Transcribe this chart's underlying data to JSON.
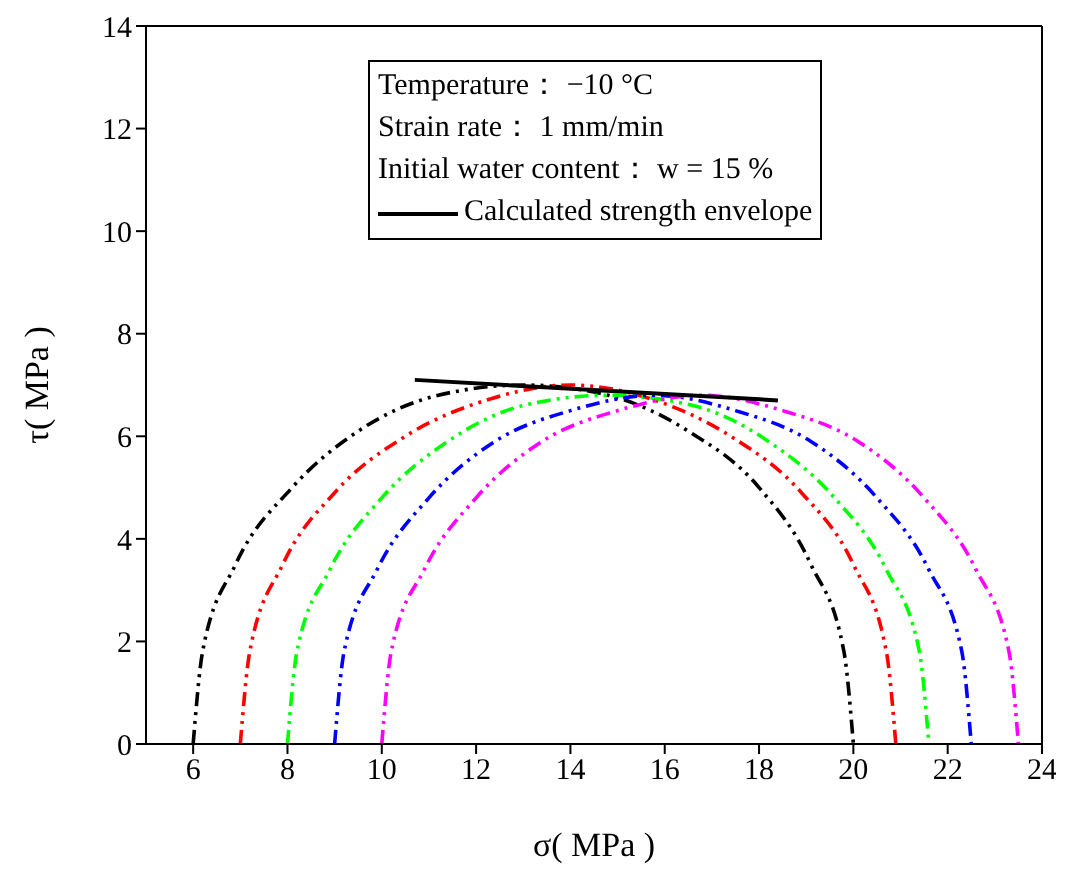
{
  "chart_data": {
    "type": "line",
    "xlabel": "σ( MPa )",
    "ylabel": "τ( MPa )",
    "annotations": [
      "Temperature： −10 °C",
      "Strain rate： 1 mm/min",
      "Initial water content： w = 15 %"
    ],
    "xlim": [
      5,
      24
    ],
    "xticks": [
      6,
      8,
      10,
      12,
      14,
      16,
      18,
      20,
      22,
      24
    ],
    "ylim": [
      0,
      14
    ],
    "yticks": [
      0,
      2,
      4,
      6,
      8,
      10,
      12,
      14
    ],
    "grid": false,
    "legend": "top",
    "series": [
      {
        "color": "#000000",
        "line_style": "dashed",
        "x": [
          6.0,
          6.2,
          6.9,
          8.1,
          9.5,
          11.2,
          13.0,
          14.8,
          16.5,
          18.0,
          19.1,
          19.8,
          20.0
        ],
        "values": [
          0,
          1.8,
          3.5,
          5.0,
          6.1,
          6.8,
          7.0,
          6.8,
          6.1,
          5.0,
          3.5,
          1.8,
          0
        ]
      },
      {
        "color": "#ff0000",
        "line_style": "dashed",
        "x": [
          7.0,
          7.2,
          7.9,
          9.0,
          10.5,
          12.2,
          14.0,
          15.8,
          17.4,
          18.9,
          20.0,
          20.7,
          20.9
        ],
        "values": [
          0,
          1.8,
          3.5,
          4.9,
          6.0,
          6.7,
          7.0,
          6.7,
          6.0,
          4.9,
          3.5,
          1.8,
          0
        ]
      },
      {
        "color": "#00ff00",
        "line_style": "dashed",
        "x": [
          8.0,
          8.2,
          8.9,
          10.0,
          11.4,
          13.0,
          14.8,
          16.6,
          18.2,
          19.6,
          20.7,
          21.4,
          21.6
        ],
        "values": [
          0,
          1.8,
          3.4,
          4.8,
          5.9,
          6.6,
          6.8,
          6.6,
          5.9,
          4.8,
          3.4,
          1.8,
          0
        ]
      },
      {
        "color": "#0000ff",
        "line_style": "dashed",
        "x": [
          9.0,
          9.2,
          9.9,
          11.0,
          12.4,
          14.0,
          15.8,
          17.5,
          19.1,
          20.5,
          21.6,
          22.3,
          22.5
        ],
        "values": [
          0,
          1.8,
          3.4,
          4.8,
          5.9,
          6.5,
          6.8,
          6.5,
          5.9,
          4.8,
          3.4,
          1.8,
          0
        ]
      },
      {
        "color": "#ff00ff",
        "line_style": "dashed",
        "x": [
          10.0,
          10.2,
          10.9,
          12.0,
          13.4,
          15.0,
          16.8,
          18.5,
          20.1,
          21.5,
          22.6,
          23.3,
          23.5
        ],
        "values": [
          0,
          1.8,
          3.4,
          4.8,
          5.9,
          6.5,
          6.8,
          6.5,
          5.9,
          4.8,
          3.4,
          1.8,
          0
        ]
      },
      {
        "name": "Calculated strength envelope",
        "color": "#000000",
        "line_style": "solid",
        "x": [
          10.7,
          18.4
        ],
        "values": [
          7.1,
          6.7
        ]
      }
    ]
  }
}
